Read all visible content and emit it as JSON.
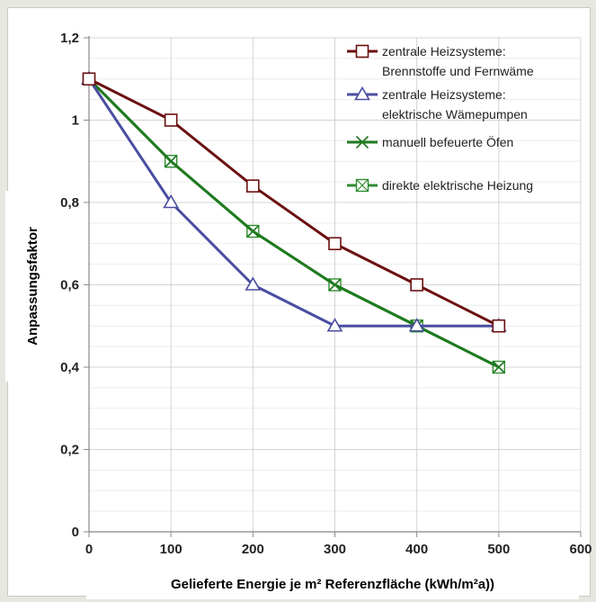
{
  "chart_data": {
    "type": "line",
    "title": "",
    "xlabel": "Gelieferte Energie je m² Referenzfläche (kWh/m²a))",
    "ylabel": "Anpassungsfaktor",
    "xlim": [
      0,
      600
    ],
    "ylim": [
      0,
      1.2
    ],
    "x_ticks": [
      "0",
      "100",
      "200",
      "300",
      "400",
      "500",
      "600"
    ],
    "y_ticks": [
      "0",
      "0,2",
      "0,4",
      "0,6",
      "0,8",
      "1",
      "1,2"
    ],
    "grid": true,
    "legend_position": "top-right",
    "series": [
      {
        "name_lines": [
          "zentrale Heizsysteme:",
          "Brennstoffe und Fernwäme"
        ],
        "color": "#6b1010",
        "marker": "square",
        "x": [
          0,
          100,
          200,
          300,
          400,
          500
        ],
        "y": [
          1.1,
          1.0,
          0.84,
          0.7,
          0.6,
          0.5
        ]
      },
      {
        "name_lines": [
          "zentrale Heizsysteme:",
          "elektrische Wämepumpen"
        ],
        "color": "#4a4ea0",
        "marker": "triangle",
        "x": [
          0,
          100,
          200,
          300,
          400,
          500
        ],
        "y": [
          1.1,
          0.8,
          0.6,
          0.5,
          0.5,
          0.5
        ]
      },
      {
        "name_lines": [
          "manuell befeuerte Öfen"
        ],
        "color": "#1f7a1f",
        "marker": "x",
        "x": [
          0,
          100,
          200,
          300,
          400,
          500
        ],
        "y": [
          1.1,
          0.9,
          0.73,
          0.6,
          0.5,
          0.4
        ]
      },
      {
        "name_lines": [
          "direkte elektrische Heizung"
        ],
        "color": "#2f8a2f",
        "marker": "box-x",
        "x": [
          0,
          100,
          200,
          300,
          400,
          500
        ],
        "y": [
          1.1,
          0.9,
          0.73,
          0.6,
          0.5,
          0.4
        ]
      }
    ]
  }
}
